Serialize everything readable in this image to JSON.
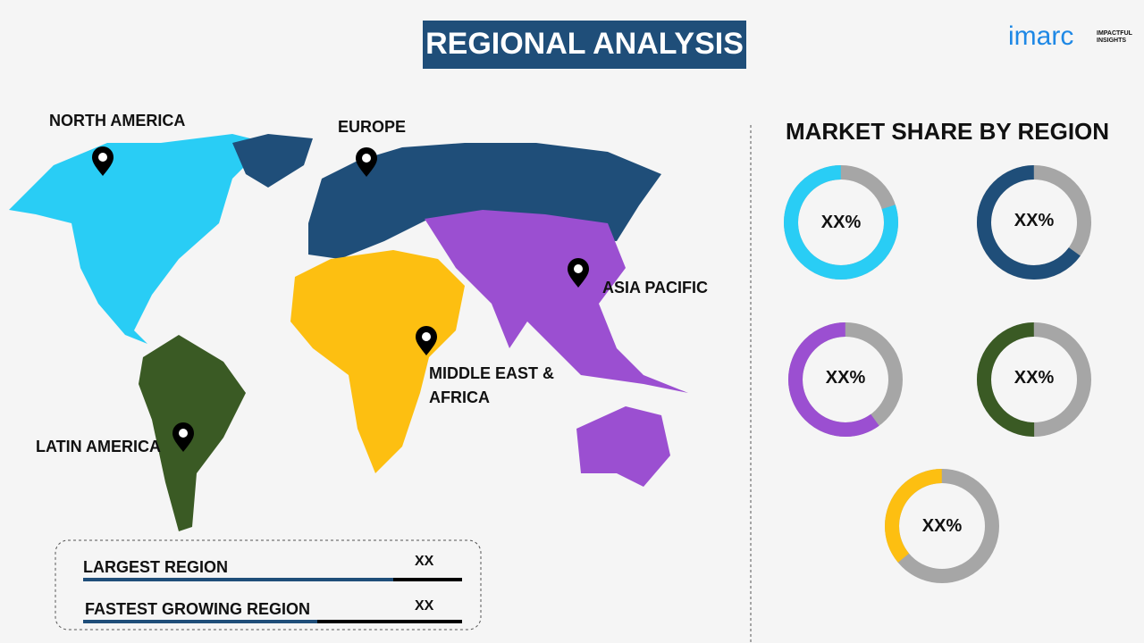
{
  "header": {
    "title": "REGIONAL ANALYSIS",
    "logo": {
      "brand": "imarc",
      "tagline": "IMPACTFUL INSIGHTS"
    }
  },
  "map": {
    "regions": [
      {
        "label": "NORTH AMERICA"
      },
      {
        "label": "EUROPE"
      },
      {
        "label": "ASIA PACIFIC"
      },
      {
        "label": "MIDDLE EAST & AFRICA"
      },
      {
        "label": "LATIN AMERICA"
      }
    ]
  },
  "market_share": {
    "title": "MARKET SHARE BY REGION",
    "donuts": [
      {
        "label": "XX%"
      },
      {
        "label": "XX%"
      },
      {
        "label": "XX%"
      },
      {
        "label": "XX%"
      },
      {
        "label": "XX%"
      }
    ]
  },
  "summary": {
    "rows": [
      {
        "label": "LARGEST REGION",
        "value": "XX"
      },
      {
        "label": "FASTEST GROWING REGION",
        "value": "XX"
      }
    ]
  }
}
